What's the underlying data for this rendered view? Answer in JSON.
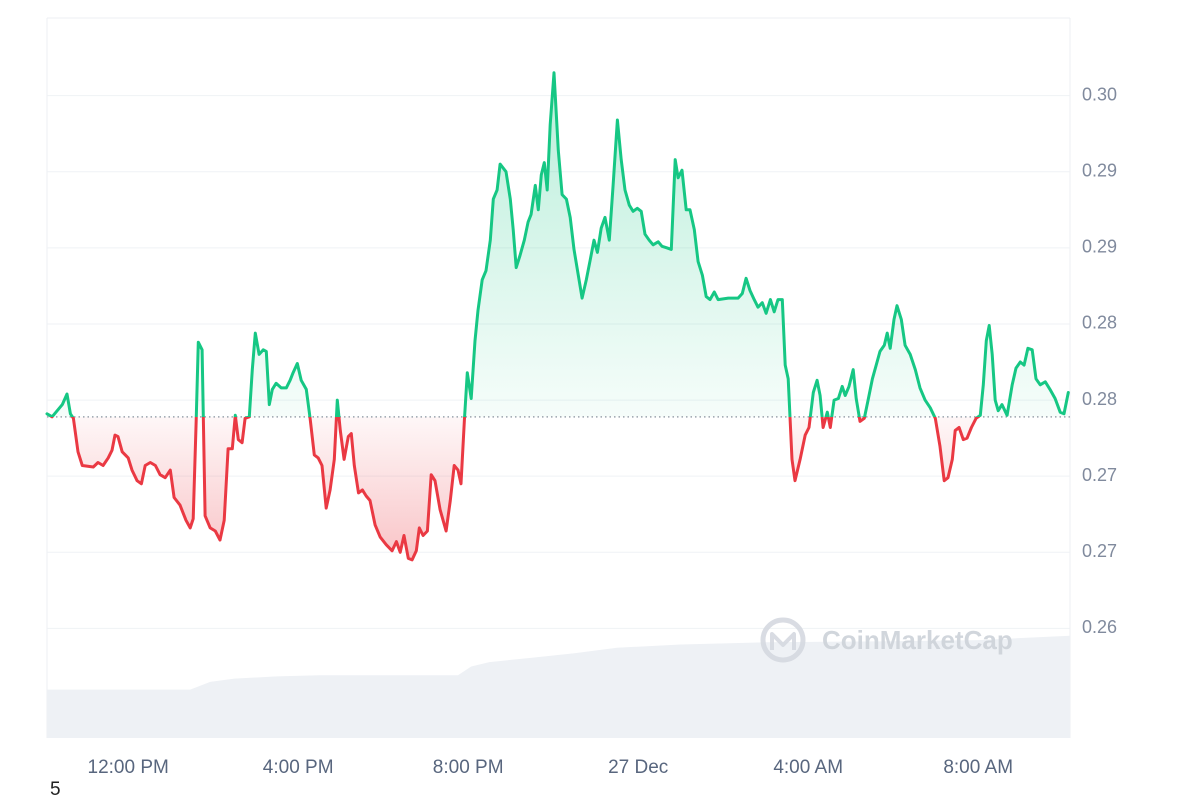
{
  "chart_data": {
    "type": "line",
    "colors": {
      "above": "#16c784",
      "below": "#ea3943"
    },
    "baseline": 0.2789,
    "xlim": [
      10.09,
      34.16
    ],
    "ylim": [
      0.2578,
      0.3051
    ],
    "yticks": [
      {
        "value": 0.3,
        "label": "0.30"
      },
      {
        "value": 0.295,
        "label": "0.29"
      },
      0.29,
      {
        "value": 0.285,
        "label": "0.28"
      },
      0.28,
      {
        "value": 0.275,
        "label": "0.27"
      },
      0.27,
      {
        "value": 0.265,
        "label": "0.26"
      }
    ],
    "xticks": [
      {
        "value": 12,
        "label": "12:00 PM"
      },
      {
        "value": 16,
        "label": "4:00 PM"
      },
      {
        "value": 20,
        "label": "8:00 PM"
      },
      {
        "value": 24,
        "label": "27 Dec"
      },
      {
        "value": 28,
        "label": "4:00 AM"
      },
      {
        "value": 32,
        "label": "8:00 AM"
      }
    ],
    "grid": true,
    "x": [
      10.09,
      10.21,
      10.45,
      10.56,
      10.64,
      10.71,
      10.82,
      10.92,
      11.18,
      11.29,
      11.41,
      11.53,
      11.62,
      11.69,
      11.76,
      11.86,
      12.0,
      12.09,
      12.21,
      12.31,
      12.4,
      12.52,
      12.64,
      12.75,
      12.87,
      12.99,
      13.08,
      13.22,
      13.36,
      13.46,
      13.53,
      13.6,
      13.65,
      13.74,
      13.81,
      13.93,
      14.05,
      14.16,
      14.26,
      14.35,
      14.45,
      14.52,
      14.59,
      14.68,
      14.75,
      14.85,
      14.92,
      14.99,
      15.08,
      15.18,
      15.25,
      15.32,
      15.39,
      15.48,
      15.6,
      15.72,
      15.81,
      15.88,
      15.98,
      16.07,
      16.19,
      16.28,
      16.38,
      16.47,
      16.56,
      16.66,
      16.75,
      16.85,
      16.92,
      16.99,
      17.08,
      17.18,
      17.25,
      17.32,
      17.42,
      17.51,
      17.6,
      17.69,
      17.81,
      17.93,
      18.07,
      18.21,
      18.31,
      18.4,
      18.49,
      18.59,
      18.68,
      18.78,
      18.85,
      18.94,
      19.04,
      19.13,
      19.22,
      19.34,
      19.48,
      19.58,
      19.67,
      19.76,
      19.83,
      19.91,
      19.98,
      20.07,
      20.16,
      20.23,
      20.33,
      20.42,
      20.52,
      20.59,
      20.68,
      20.75,
      20.89,
      20.99,
      21.06,
      21.13,
      21.22,
      21.32,
      21.41,
      21.48,
      21.58,
      21.65,
      21.72,
      21.79,
      21.86,
      21.93,
      22.02,
      22.12,
      22.21,
      22.31,
      22.4,
      22.49,
      22.59,
      22.68,
      22.78,
      22.87,
      22.96,
      23.04,
      23.13,
      23.22,
      23.32,
      23.41,
      23.51,
      23.6,
      23.69,
      23.79,
      23.88,
      23.98,
      24.07,
      24.16,
      24.26,
      24.35,
      24.47,
      24.56,
      24.68,
      24.78,
      24.87,
      24.94,
      25.03,
      25.13,
      25.22,
      25.32,
      25.41,
      25.51,
      25.6,
      25.69,
      25.79,
      25.88,
      26.12,
      26.35,
      26.45,
      26.54,
      26.63,
      26.73,
      26.82,
      26.92,
      27.01,
      27.11,
      27.2,
      27.29,
      27.39,
      27.46,
      27.53,
      27.62,
      27.69,
      27.81,
      27.93,
      28.02,
      28.12,
      28.21,
      28.28,
      28.35,
      28.45,
      28.52,
      28.61,
      28.71,
      28.8,
      28.87,
      28.96,
      29.06,
      29.13,
      29.22,
      29.32,
      29.41,
      29.51,
      29.6,
      29.69,
      29.79,
      29.86,
      29.93,
      30.02,
      30.09,
      30.19,
      30.28,
      30.4,
      30.52,
      30.63,
      30.75,
      30.87,
      30.99,
      31.1,
      31.2,
      31.29,
      31.39,
      31.46,
      31.55,
      31.65,
      31.74,
      31.84,
      31.95,
      32.05,
      32.12,
      32.19,
      32.26,
      32.33,
      32.4,
      32.47,
      32.56,
      32.68,
      32.8,
      32.89,
      32.99,
      33.08,
      33.17,
      33.27,
      33.36,
      33.46,
      33.58,
      33.69,
      33.81,
      33.93,
      34.02,
      34.12
    ],
    "values": [
      0.2791,
      0.2789,
      0.2797,
      0.2804,
      0.2791,
      0.2788,
      0.2766,
      0.2757,
      0.2756,
      0.2759,
      0.2757,
      0.2762,
      0.2767,
      0.2777,
      0.2776,
      0.2766,
      0.2762,
      0.2754,
      0.2747,
      0.2745,
      0.2757,
      0.2759,
      0.2757,
      0.2751,
      0.2749,
      0.2754,
      0.2736,
      0.2731,
      0.2721,
      0.2716,
      0.2722,
      0.2787,
      0.2838,
      0.2833,
      0.2724,
      0.2716,
      0.2714,
      0.2708,
      0.2721,
      0.2768,
      0.2768,
      0.279,
      0.2774,
      0.2772,
      0.2788,
      0.2789,
      0.282,
      0.2844,
      0.283,
      0.2833,
      0.2832,
      0.2797,
      0.2807,
      0.2811,
      0.2808,
      0.2808,
      0.2813,
      0.2818,
      0.2824,
      0.2813,
      0.2807,
      0.2788,
      0.2764,
      0.2762,
      0.2757,
      0.2729,
      0.2741,
      0.2761,
      0.28,
      0.278,
      0.2761,
      0.2776,
      0.2778,
      0.2757,
      0.2739,
      0.2741,
      0.2737,
      0.2734,
      0.2718,
      0.271,
      0.2705,
      0.2701,
      0.2707,
      0.27,
      0.2711,
      0.2696,
      0.2695,
      0.2701,
      0.2716,
      0.2711,
      0.2714,
      0.2751,
      0.2747,
      0.2728,
      0.2714,
      0.2734,
      0.2757,
      0.2754,
      0.2745,
      0.2787,
      0.2818,
      0.2801,
      0.2839,
      0.2859,
      0.2879,
      0.2885,
      0.2905,
      0.2932,
      0.2938,
      0.2955,
      0.295,
      0.2932,
      0.2912,
      0.2887,
      0.2895,
      0.2905,
      0.2917,
      0.2922,
      0.2941,
      0.2925,
      0.2948,
      0.2956,
      0.2938,
      0.2981,
      0.3015,
      0.2964,
      0.2935,
      0.2932,
      0.292,
      0.2899,
      0.2882,
      0.2867,
      0.2879,
      0.2892,
      0.2905,
      0.2897,
      0.2913,
      0.292,
      0.2905,
      0.2941,
      0.2984,
      0.2958,
      0.2938,
      0.2928,
      0.2924,
      0.2926,
      0.2924,
      0.2909,
      0.2905,
      0.2902,
      0.2904,
      0.2901,
      0.29,
      0.2899,
      0.2958,
      0.2946,
      0.2951,
      0.2925,
      0.2925,
      0.2912,
      0.2891,
      0.2882,
      0.2868,
      0.2866,
      0.2871,
      0.2866,
      0.2867,
      0.2867,
      0.287,
      0.288,
      0.2872,
      0.2866,
      0.2861,
      0.2864,
      0.2857,
      0.2866,
      0.2858,
      0.2866,
      0.2866,
      0.2823,
      0.2814,
      0.2761,
      0.2747,
      0.2761,
      0.2777,
      0.2782,
      0.2805,
      0.2813,
      0.2803,
      0.2782,
      0.2792,
      0.2782,
      0.28,
      0.2801,
      0.2809,
      0.2803,
      0.2809,
      0.282,
      0.2801,
      0.2786,
      0.2788,
      0.28,
      0.2814,
      0.2823,
      0.2832,
      0.2836,
      0.2844,
      0.2834,
      0.2853,
      0.2862,
      0.2853,
      0.2836,
      0.283,
      0.282,
      0.2808,
      0.28,
      0.2795,
      0.2788,
      0.277,
      0.2747,
      0.2749,
      0.2761,
      0.278,
      0.2782,
      0.2774,
      0.2775,
      0.2782,
      0.2788,
      0.279,
      0.281,
      0.2839,
      0.2849,
      0.283,
      0.28,
      0.2793,
      0.2797,
      0.279,
      0.281,
      0.2821,
      0.2825,
      0.2823,
      0.2834,
      0.2833,
      0.2814,
      0.281,
      0.2812,
      0.2807,
      0.2801,
      0.2792,
      0.2791,
      0.2805
    ],
    "volume": {
      "color": "#eef1f5",
      "ylim": [
        0,
        100
      ],
      "x": [
        10.09,
        13.46,
        13.93,
        14.5,
        15.5,
        16.5,
        19.76,
        20.07,
        20.5,
        21.5,
        22.5,
        23.5,
        25,
        27,
        30,
        32,
        34.16
      ],
      "values": [
        44,
        44,
        51,
        54,
        56,
        57,
        57,
        65,
        69,
        73,
        77,
        82,
        85,
        87,
        88,
        89,
        93
      ]
    },
    "watermark": "CoinMarketCap",
    "footnote": "5"
  }
}
